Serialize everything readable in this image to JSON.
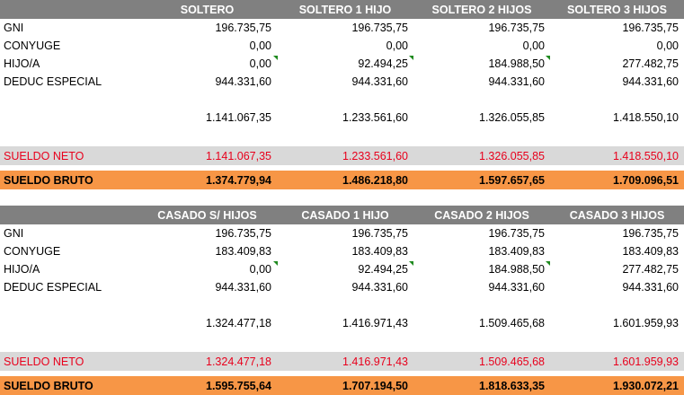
{
  "tables": [
    {
      "headers": [
        "SOLTERO",
        "SOLTERO 1 HIJO",
        "SOLTERO 2 HIJOS",
        "SOLTERO 3 HIJOS"
      ],
      "rows": [
        {
          "label": "GNI",
          "values": [
            "196.735,75",
            "196.735,75",
            "196.735,75",
            "196.735,75"
          ]
        },
        {
          "label": "CONYUGE",
          "values": [
            "0,00",
            "0,00",
            "0,00",
            "0,00"
          ]
        },
        {
          "label": "HIJO/A",
          "values": [
            "0,00",
            "92.494,25",
            "184.988,50",
            "277.482,75"
          ]
        },
        {
          "label": "DEDUC ESPECIAL",
          "values": [
            "944.331,60",
            "944.331,60",
            "944.331,60",
            "944.331,60"
          ]
        }
      ],
      "total": [
        "1.141.067,35",
        "1.233.561,60",
        "1.326.055,85",
        "1.418.550,10"
      ],
      "neto": {
        "label": "SUELDO NETO",
        "values": [
          "1.141.067,35",
          "1.233.561,60",
          "1.326.055,85",
          "1.418.550,10"
        ]
      },
      "bruto": {
        "label": "SUELDO BRUTO",
        "values": [
          "1.374.779,94",
          "1.486.218,80",
          "1.597.657,65",
          "1.709.096,51"
        ]
      }
    },
    {
      "headers": [
        "CASADO S/ HIJOS",
        "CASADO 1 HIJO",
        "CASADO 2 HIJOS",
        "CASADO 3 HIJOS"
      ],
      "rows": [
        {
          "label": "GNI",
          "values": [
            "196.735,75",
            "196.735,75",
            "196.735,75",
            "196.735,75"
          ]
        },
        {
          "label": "CONYUGE",
          "values": [
            "183.409,83",
            "183.409,83",
            "183.409,83",
            "183.409,83"
          ]
        },
        {
          "label": "HIJO/A",
          "values": [
            "0,00",
            "92.494,25",
            "184.988,50",
            "277.482,75"
          ]
        },
        {
          "label": "DEDUC ESPECIAL",
          "values": [
            "944.331,60",
            "944.331,60",
            "944.331,60",
            "944.331,60"
          ]
        }
      ],
      "total": [
        "1.324.477,18",
        "1.416.971,43",
        "1.509.465,68",
        "1.601.959,93"
      ],
      "neto": {
        "label": "SUELDO NETO",
        "values": [
          "1.324.477,18",
          "1.416.971,43",
          "1.509.465,68",
          "1.601.959,93"
        ]
      },
      "bruto": {
        "label": "SUELDO BRUTO",
        "values": [
          "1.595.755,64",
          "1.707.194,50",
          "1.818.633,35",
          "1.930.072,21"
        ]
      }
    }
  ],
  "colors": {
    "header_bg": "#808080",
    "neto_bg": "#d9d9d9",
    "neto_text": "#e8001c",
    "bruto_bg": "#f79646",
    "comment_marker": "#1f8a1f"
  }
}
